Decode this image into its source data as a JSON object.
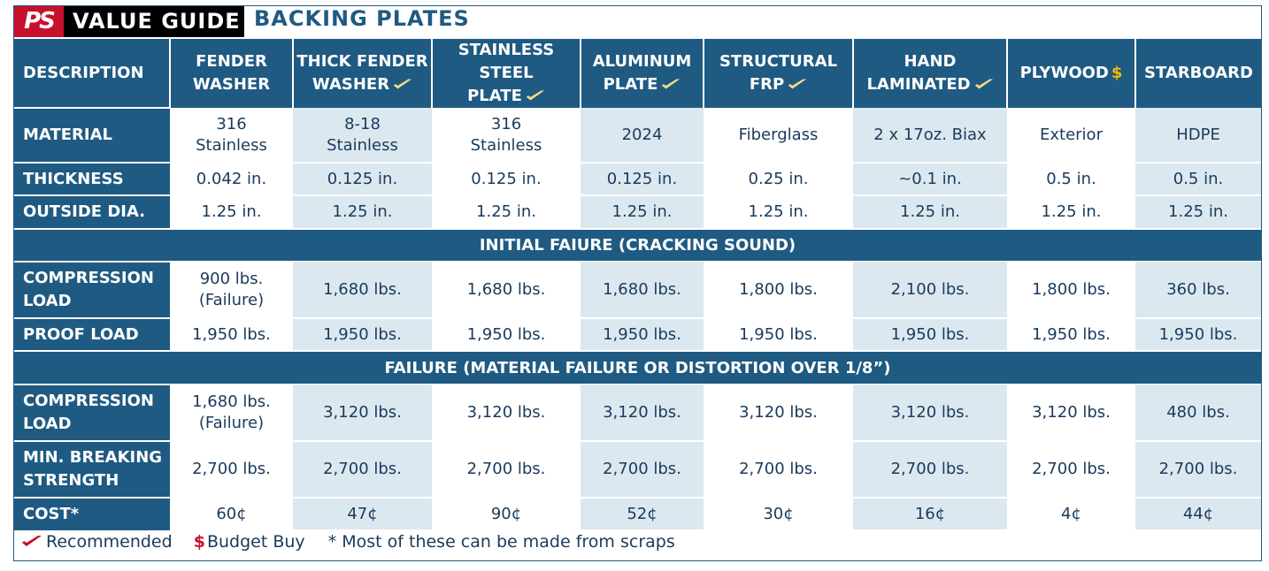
{
  "header": {
    "logo_text": "PS",
    "guide_label": "VALUE GUIDE",
    "title": "BACKING PLATES"
  },
  "columns": [
    {
      "label": "DESCRIPTION"
    },
    {
      "label": "FENDER\nWASHER",
      "line1": "FENDER",
      "line2": "WASHER",
      "recommended": false
    },
    {
      "line1": "THICK FENDER",
      "line2": "WASHER",
      "recommended": true
    },
    {
      "line1": "STAINLESS STEEL",
      "line2": "PLATE",
      "recommended": true
    },
    {
      "line1": "ALUMINUM",
      "line2": "PLATE",
      "recommended": true
    },
    {
      "line1": "STRUCTURAL",
      "line2": "FRP",
      "recommended": true
    },
    {
      "line1": "HAND",
      "line2": "LAMINATED",
      "recommended": true
    },
    {
      "line1": "PLYWOOD",
      "budget": true
    },
    {
      "line1": "STARBOARD"
    }
  ],
  "rows_spec": [
    {
      "label": "MATERIAL",
      "values": [
        "316\nStainless",
        "8-18\nStainless",
        "316\nStainless",
        "2024",
        "Fiberglass",
        "2 x 17oz. Biax",
        "Exterior",
        "HDPE"
      ]
    },
    {
      "label": "THICKNESS",
      "values": [
        "0.042 in.",
        "0.125 in.",
        "0.125 in.",
        "0.125 in.",
        "0.25 in.",
        "~0.1 in.",
        "0.5 in.",
        "0.5 in."
      ]
    },
    {
      "label": "OUTSIDE DIA.",
      "values": [
        "1.25 in.",
        "1.25 in.",
        "1.25 in.",
        "1.25 in.",
        "1.25 in.",
        "1.25 in.",
        "1.25 in.",
        "1.25 in."
      ]
    }
  ],
  "section_initial": "INITIAL FAIURE (CRACKING SOUND)",
  "rows_initial": [
    {
      "label": "COMPRESSION\nLOAD",
      "values": [
        "900 lbs.\n(Failure)",
        "1,680 lbs.",
        "1,680 lbs.",
        "1,680 lbs.",
        "1,800 lbs.",
        "2,100 lbs.",
        "1,800 lbs.",
        "360 lbs."
      ]
    },
    {
      "label": "PROOF LOAD",
      "values": [
        "1,950 lbs.",
        "1,950 lbs.",
        "1,950 lbs.",
        "1,950 lbs.",
        "1,950 lbs.",
        "1,950 lbs.",
        "1,950 lbs.",
        "1,950 lbs."
      ]
    }
  ],
  "section_failure": "FAILURE (MATERIAL FAILURE OR DISTORTION OVER 1/8”)",
  "rows_failure": [
    {
      "label": "COMPRESSION\nLOAD",
      "values": [
        "1,680 lbs.\n(Failure)",
        "3,120 lbs.",
        "3,120 lbs.",
        "3,120 lbs.",
        "3,120 lbs.",
        "3,120 lbs.",
        "3,120 lbs.",
        "480 lbs."
      ]
    },
    {
      "label": "MIN. BREAKING\nSTRENGTH",
      "values": [
        "2,700 lbs.",
        "2,700 lbs.",
        "2,700 lbs.",
        "2,700 lbs.",
        "2,700 lbs.",
        "2,700 lbs.",
        "2,700 lbs.",
        "2,700 lbs."
      ]
    },
    {
      "label": "COST*",
      "values": [
        "60¢",
        "47¢",
        "90¢",
        "52¢",
        "30¢",
        "16¢",
        "4¢",
        "44¢"
      ]
    }
  ],
  "legend": {
    "recommended": "Recommended",
    "budget": "Budget Buy",
    "budget_symbol": "$",
    "note": "* Most of these can be made from scraps"
  },
  "colors": {
    "header_blue": "#1f5a82",
    "shade": "#dce8f0",
    "logo_red": "#c8102e",
    "dollar_gold": "#f2b705"
  },
  "icons": {
    "recommended": "check-icon",
    "budget": "dollar-icon"
  }
}
